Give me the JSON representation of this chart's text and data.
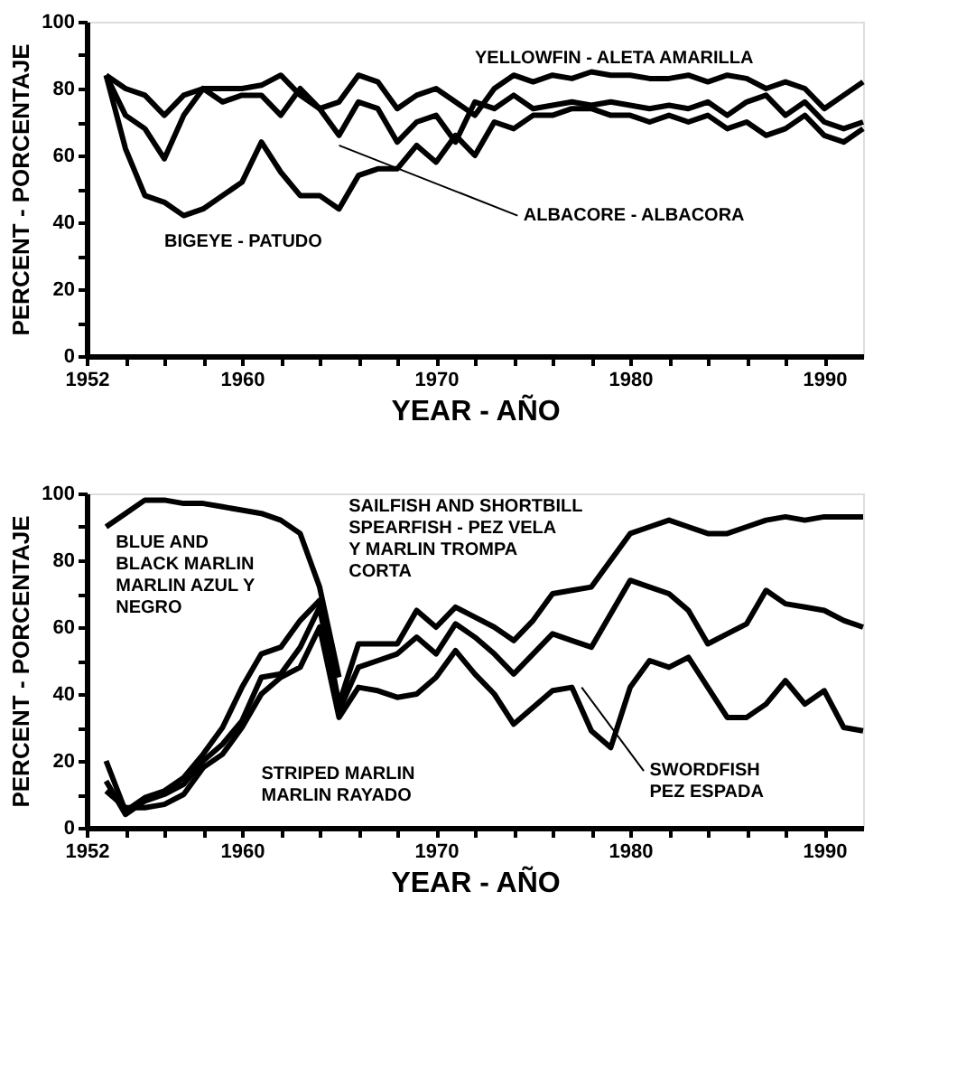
{
  "chart_data": [
    {
      "type": "line",
      "xlabel": "YEAR - AÑO",
      "ylabel": "PERCENT - PORCENTAJE",
      "xlim": [
        1952,
        1992
      ],
      "ylim": [
        0,
        100
      ],
      "xticks": [
        1952,
        {
          "value": 1954,
          "label": null
        },
        {
          "value": 1956,
          "label": null
        },
        {
          "value": 1958,
          "label": null
        },
        1960,
        {
          "value": 1962,
          "label": null
        },
        {
          "value": 1964,
          "label": null
        },
        {
          "value": 1966,
          "label": null
        },
        {
          "value": 1968,
          "label": null
        },
        1970,
        {
          "value": 1972,
          "label": null
        },
        {
          "value": 1974,
          "label": null
        },
        {
          "value": 1976,
          "label": null
        },
        {
          "value": 1978,
          "label": null
        },
        1980,
        {
          "value": 1982,
          "label": null
        },
        {
          "value": 1984,
          "label": null
        },
        {
          "value": 1986,
          "label": null
        },
        {
          "value": 1988,
          "label": null
        },
        1990
      ],
      "yticks": [
        0,
        {
          "value": 10,
          "label": null
        },
        20,
        {
          "value": 30,
          "label": null
        },
        40,
        {
          "value": 50,
          "label": null
        },
        60,
        {
          "value": 70,
          "label": null
        },
        80,
        {
          "value": 90,
          "label": null
        },
        100
      ],
      "grid": false,
      "marker": "none",
      "line_style": "solid",
      "x": [
        1953,
        1954,
        1955,
        1956,
        1957,
        1958,
        1959,
        1960,
        1961,
        1962,
        1963,
        1964,
        1965,
        1966,
        1967,
        1968,
        1969,
        1970,
        1971,
        1972,
        1973,
        1974,
        1975,
        1976,
        1977,
        1978,
        1979,
        1980,
        1981,
        1982,
        1983,
        1984,
        1985,
        1986,
        1987,
        1988,
        1989,
        1990,
        1991,
        1992
      ],
      "series": [
        {
          "name": "YELLOWFIN - ALETA AMARILLA",
          "color": "#000000",
          "values": [
            84,
            80,
            78,
            72,
            78,
            80,
            80,
            80,
            81,
            84,
            78,
            74,
            76,
            84,
            82,
            74,
            78,
            80,
            76,
            72,
            80,
            84,
            82,
            84,
            83,
            85,
            84,
            84,
            83,
            83,
            84,
            82,
            84,
            83,
            80,
            82,
            80,
            74,
            78,
            82
          ]
        },
        {
          "name": "ALBACORE - ALBACORA",
          "color": "#000000",
          "values": [
            84,
            72,
            68,
            59,
            72,
            80,
            76,
            78,
            78,
            72,
            80,
            74,
            66,
            76,
            74,
            64,
            70,
            72,
            64,
            76,
            74,
            78,
            74,
            75,
            76,
            75,
            76,
            75,
            74,
            75,
            74,
            76,
            72,
            76,
            78,
            72,
            76,
            70,
            68,
            70
          ]
        },
        {
          "name": "BIGEYE - PATUDO",
          "color": "#000000",
          "values": [
            84,
            62,
            48,
            46,
            42,
            44,
            48,
            52,
            64,
            55,
            48,
            48,
            44,
            54,
            56,
            56,
            63,
            58,
            66,
            60,
            70,
            68,
            72,
            72,
            74,
            74,
            72,
            72,
            70,
            72,
            70,
            72,
            68,
            70,
            66,
            68,
            72,
            66,
            64,
            68
          ]
        }
      ]
    },
    {
      "type": "line",
      "xlabel": "YEAR - AÑO",
      "ylabel": "PERCENT - PORCENTAJE",
      "xlim": [
        1952,
        1992
      ],
      "ylim": [
        0,
        100
      ],
      "xticks": [
        1952,
        {
          "value": 1954,
          "label": null
        },
        {
          "value": 1956,
          "label": null
        },
        {
          "value": 1958,
          "label": null
        },
        1960,
        {
          "value": 1962,
          "label": null
        },
        {
          "value": 1964,
          "label": null
        },
        {
          "value": 1966,
          "label": null
        },
        {
          "value": 1968,
          "label": null
        },
        1970,
        {
          "value": 1972,
          "label": null
        },
        {
          "value": 1974,
          "label": null
        },
        {
          "value": 1976,
          "label": null
        },
        {
          "value": 1978,
          "label": null
        },
        1980,
        {
          "value": 1982,
          "label": null
        },
        {
          "value": 1984,
          "label": null
        },
        {
          "value": 1986,
          "label": null
        },
        {
          "value": 1988,
          "label": null
        },
        1990
      ],
      "yticks": [
        0,
        {
          "value": 10,
          "label": null
        },
        20,
        {
          "value": 30,
          "label": null
        },
        40,
        {
          "value": 50,
          "label": null
        },
        60,
        {
          "value": 70,
          "label": null
        },
        80,
        {
          "value": 90,
          "label": null
        },
        100
      ],
      "grid": false,
      "marker": "none",
      "line_style": "solid",
      "x": [
        1953,
        1954,
        1955,
        1956,
        1957,
        1958,
        1959,
        1960,
        1961,
        1962,
        1963,
        1964,
        1965,
        1966,
        1967,
        1968,
        1969,
        1970,
        1971,
        1972,
        1973,
        1974,
        1975,
        1976,
        1977,
        1978,
        1979,
        1980,
        1981,
        1982,
        1983,
        1984,
        1985,
        1986,
        1987,
        1988,
        1989,
        1990,
        1991,
        1992
      ],
      "series": [
        {
          "name": "BLUE AND\nBLACK MARLIN\nMARLIN AZUL Y\nNEGRO",
          "color": "#000000",
          "values": [
            90,
            94,
            98,
            98,
            97,
            97,
            96,
            95,
            94,
            92,
            88,
            72,
            45,
            null,
            null,
            null,
            null,
            null,
            null,
            null,
            null,
            null,
            null,
            null,
            null,
            null,
            null,
            null,
            null,
            null,
            null,
            null,
            null,
            null,
            null,
            null,
            null,
            null,
            null,
            null
          ]
        },
        {
          "name": "SAILFISH AND SHORTBILL\nSPEARFISH - PEZ VELA\nY MARLIN TROMPA\nCORTA",
          "color": "#000000",
          "values": [
            20,
            5,
            9,
            11,
            15,
            22,
            30,
            42,
            52,
            54,
            62,
            68,
            37,
            55,
            55,
            55,
            65,
            60,
            66,
            63,
            60,
            56,
            62,
            70,
            71,
            72,
            80,
            88,
            90,
            92,
            90,
            88,
            88,
            90,
            92,
            93,
            92,
            93,
            93,
            93
          ]
        },
        {
          "name": "STRIPED MARLIN\nMARLIN RAYADO",
          "color": "#000000",
          "values": [
            14,
            4,
            8,
            10,
            13,
            20,
            25,
            32,
            45,
            46,
            54,
            66,
            35,
            48,
            50,
            52,
            57,
            52,
            61,
            57,
            52,
            46,
            52,
            58,
            56,
            54,
            64,
            74,
            72,
            70,
            65,
            55,
            58,
            61,
            71,
            67,
            66,
            65,
            62,
            60
          ]
        },
        {
          "name": "SWORDFISH\nPEZ ESPADA",
          "color": "#000000",
          "values": [
            11,
            6,
            6,
            7,
            10,
            18,
            22,
            30,
            40,
            45,
            48,
            60,
            33,
            42,
            41,
            39,
            40,
            45,
            53,
            46,
            40,
            31,
            36,
            41,
            42,
            29,
            24,
            42,
            50,
            48,
            51,
            42,
            33,
            33,
            37,
            44,
            37,
            41,
            30,
            29
          ]
        }
      ]
    }
  ]
}
